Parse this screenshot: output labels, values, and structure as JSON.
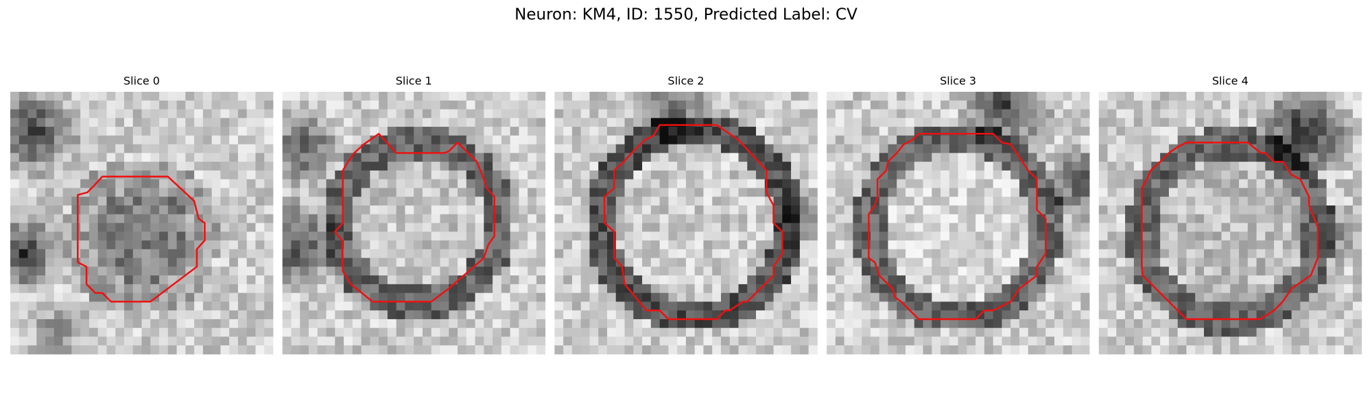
{
  "title": "Neuron: KM4, ID: 1550, Predicted Label: CV",
  "panels": [
    {
      "title": "Slice 0"
    },
    {
      "title": "Slice 1"
    },
    {
      "title": "Slice 2"
    },
    {
      "title": "Slice 3"
    },
    {
      "title": "Slice 4"
    }
  ]
}
